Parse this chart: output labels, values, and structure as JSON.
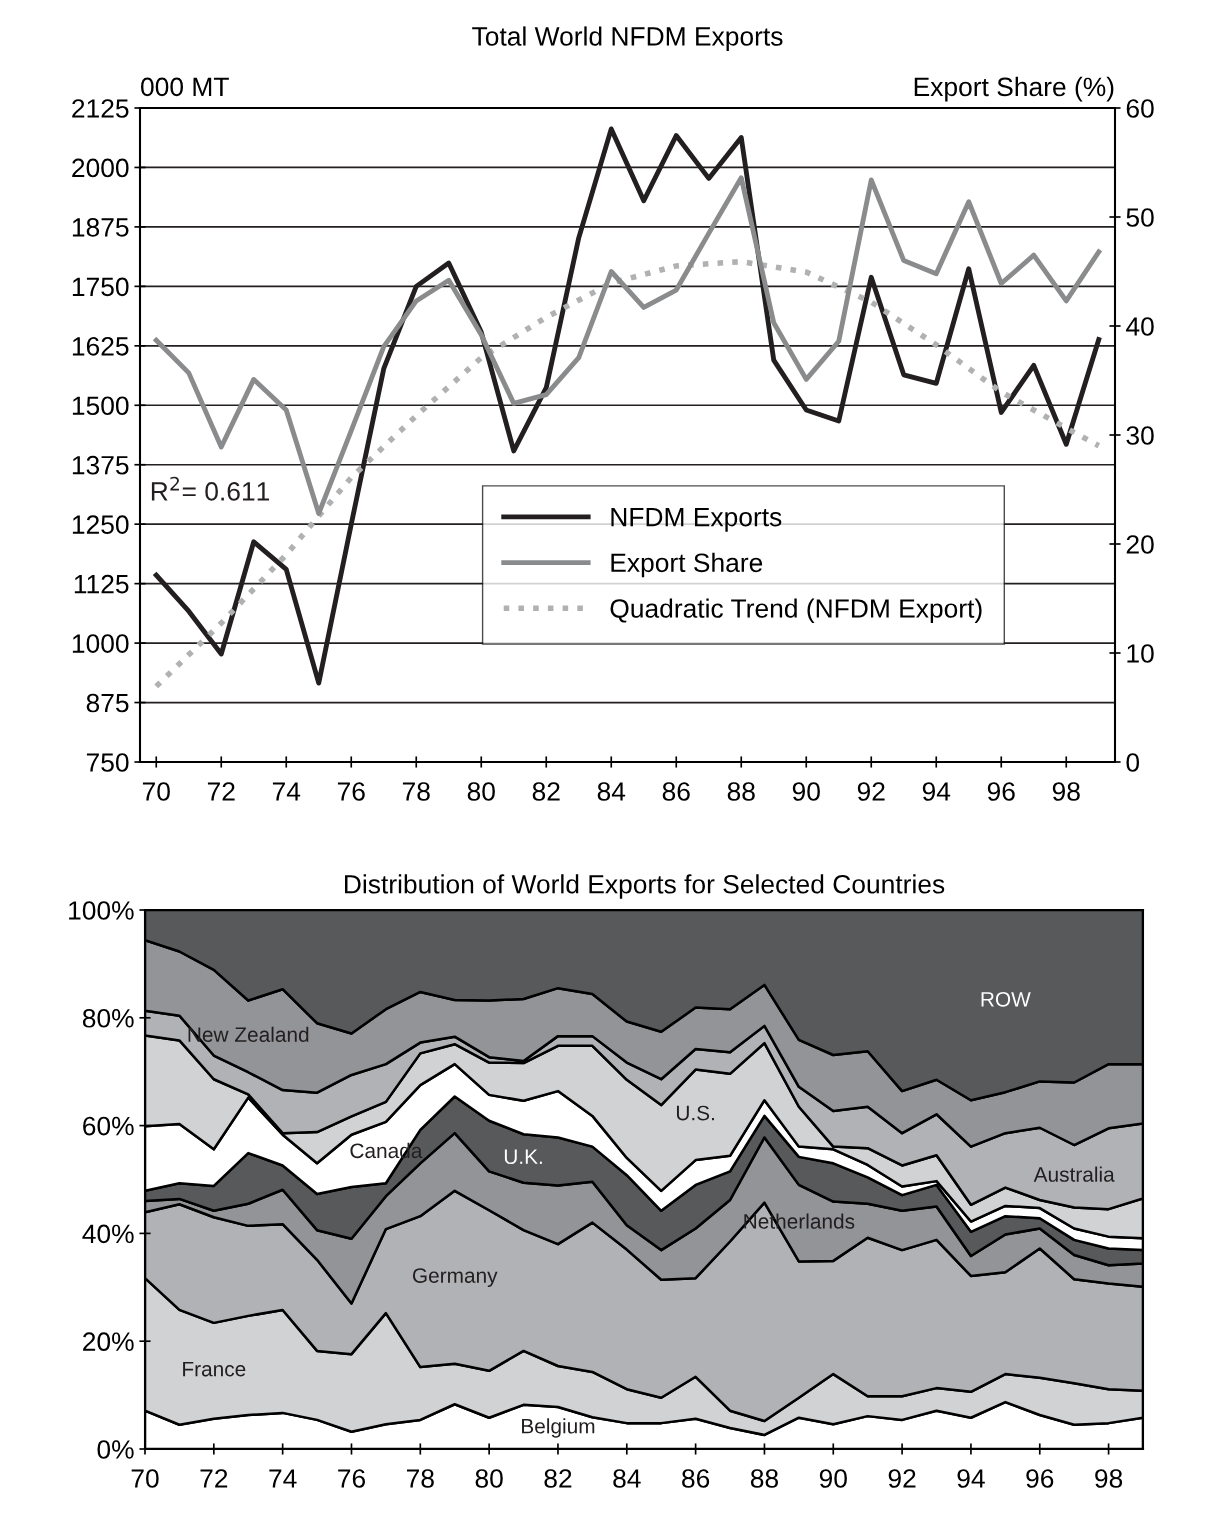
{
  "chart_data": [
    {
      "type": "line",
      "title": "Total World NFDM Exports",
      "ylabel": "000 MT",
      "y2label": "Export Share (%)",
      "x": [
        70,
        71,
        72,
        73,
        74,
        75,
        76,
        77,
        78,
        79,
        80,
        81,
        82,
        83,
        84,
        85,
        86,
        87,
        88,
        89,
        90,
        91,
        92,
        93,
        94,
        95,
        96,
        97,
        98,
        99
      ],
      "xlim": [
        69.5,
        99.5
      ],
      "xticks": [
        70,
        72,
        74,
        76,
        78,
        80,
        82,
        84,
        86,
        88,
        90,
        92,
        94,
        96,
        98
      ],
      "ylim": [
        750,
        2125
      ],
      "yticks": [
        750,
        875,
        1000,
        1125,
        1250,
        1375,
        1500,
        1625,
        1750,
        1875,
        2000,
        2125
      ],
      "y2lim": [
        0,
        60
      ],
      "y2ticks": [
        0,
        10,
        20,
        30,
        40,
        50,
        60
      ],
      "grid": "y",
      "legend": "bottom right",
      "marker": "none",
      "annotations": [
        "R$^{2}$= 0.611"
      ],
      "series": [
        {
          "name": "NFDM Exports",
          "color": "#231f20",
          "line_style": "solid",
          "values": [
            1143,
            1067,
            977,
            1213,
            1155,
            916,
            1250,
            1577,
            1750,
            1799,
            1654,
            1404,
            1537,
            1852,
            2081,
            1930,
            2067,
            1977,
            2063,
            1595,
            1490,
            1467,
            1769,
            1564,
            1546,
            1787,
            1485,
            1584,
            1418,
            1638
          ]
        },
        {
          "name": "Export Share",
          "color": "#8a8b8d",
          "line_style": "solid",
          "axis": "y2",
          "values": [
            38.7,
            35.7,
            28.9,
            35.1,
            32.3,
            22.8,
            30.4,
            38.1,
            42.3,
            44.2,
            39.2,
            32.9,
            33.7,
            37.1,
            45.0,
            41.7,
            43.3,
            48.5,
            53.6,
            40.3,
            35.1,
            38.6,
            53.4,
            46.0,
            44.8,
            51.4,
            43.9,
            46.5,
            42.3,
            46.8
          ]
        },
        {
          "name": "Quadratic Trend (NFDM Export)",
          "color": "#b0b1b3",
          "line_style": "dotted",
          "x": [
            70,
            72,
            74,
            76,
            78,
            80,
            82,
            84,
            86,
            88,
            90,
            92,
            94,
            96,
            98,
            99
          ],
          "values": [
            909,
            1042,
            1186,
            1348,
            1478,
            1600,
            1685,
            1757,
            1793,
            1802,
            1780,
            1717,
            1627,
            1528,
            1452,
            1415
          ]
        }
      ]
    },
    {
      "type": "area",
      "stacked": true,
      "title": "Distribution of World Exports for Selected Countries",
      "x": [
        70,
        71,
        72,
        73,
        74,
        75,
        76,
        77,
        78,
        79,
        80,
        81,
        82,
        83,
        84,
        85,
        86,
        87,
        88,
        89,
        90,
        91,
        92,
        93,
        94,
        95,
        96,
        97,
        98,
        99
      ],
      "xlim": [
        70,
        99
      ],
      "xticks": [
        70,
        72,
        74,
        76,
        78,
        80,
        82,
        84,
        86,
        88,
        90,
        92,
        94,
        96,
        98
      ],
      "ylim": [
        0,
        100
      ],
      "yticks": [
        {
          "value": 0,
          "label": "0%"
        },
        {
          "value": 20,
          "label": "20%"
        },
        {
          "value": 40,
          "label": "40%"
        },
        {
          "value": 60,
          "label": "60%"
        },
        {
          "value": 80,
          "label": "80%"
        },
        {
          "value": 100,
          "label": "100%"
        }
      ],
      "grid": false,
      "series": [
        {
          "name": "Belgium",
          "color": "#ffffff",
          "values": [
            7.1,
            4.5,
            5.6,
            6.3,
            6.7,
            5.4,
            3.2,
            4.6,
            5.4,
            8.3,
            5.8,
            8.2,
            7.8,
            5.9,
            4.8,
            4.8,
            5.6,
            3.9,
            2.6,
            5.8,
            4.6,
            6.1,
            5.4,
            7.1,
            5.8,
            8.7,
            6.3,
            4.5,
            4.8,
            5.8
          ]
        },
        {
          "name": "France",
          "color": "#d1d2d4",
          "values": [
            24.6,
            21.3,
            17.8,
            18.4,
            19.1,
            12.8,
            14.4,
            20.6,
            9.8,
            7.5,
            8.7,
            10.0,
            7.6,
            8.4,
            6.3,
            4.7,
            7.8,
            3.2,
            2.6,
            3.7,
            9.3,
            3.7,
            4.4,
            4.2,
            4.8,
            5.2,
            6.9,
            7.7,
            6.3,
            5.0
          ]
        },
        {
          "name": "Germany",
          "color": "#b1b2b5",
          "values": [
            12.2,
            19.6,
            19.6,
            16.7,
            15.9,
            16.9,
            9.4,
            15.6,
            28.0,
            32.1,
            29.8,
            22.4,
            22.6,
            27.7,
            25.9,
            21.9,
            18.3,
            31.4,
            40.5,
            25.3,
            21.0,
            29.4,
            27.1,
            27.5,
            21.5,
            18.9,
            24.0,
            19.3,
            19.6,
            19.3
          ]
        },
        {
          "name": "Netherlands",
          "color": "#939497",
          "values": [
            2.1,
            1.0,
            1.2,
            4.1,
            6.4,
            5.5,
            12.0,
            6.1,
            9.8,
            10.7,
            7.2,
            8.8,
            10.9,
            7.6,
            4.5,
            5.5,
            9.2,
            7.7,
            12.1,
            14.2,
            11.0,
            6.3,
            7.3,
            6.2,
            3.7,
            7.0,
            3.7,
            4.5,
            3.4,
            4.3
          ]
        },
        {
          "name": "U.K.",
          "color": "#58595b",
          "values": [
            1.9,
            2.9,
            4.6,
            9.4,
            4.5,
            6.7,
            9.6,
            2.4,
            6.2,
            6.8,
            9.4,
            9.0,
            8.9,
            6.5,
            9.3,
            7.3,
            8.1,
            5.3,
            4.0,
            5.2,
            7.1,
            4.9,
            2.9,
            4.0,
            4.5,
            3.4,
            1.9,
            2.8,
            3.1,
            2.5
          ]
        },
        {
          "name": "Canada",
          "color": "#ffffff",
          "values": [
            12.0,
            11.0,
            6.8,
            10.3,
            5.7,
            5.7,
            9.7,
            11.4,
            8.3,
            6.0,
            4.8,
            6.2,
            8.6,
            5.7,
            3.2,
            3.7,
            4.6,
            2.9,
            2.9,
            1.9,
            2.6,
            2.3,
            1.6,
            0.7,
            1.9,
            1.9,
            1.9,
            2.1,
            2.2,
            2.2
          ]
        },
        {
          "name": "U.S.",
          "color": "#d1d2d4",
          "values": [
            16.8,
            15.5,
            13.0,
            0.6,
            0.3,
            5.8,
            3.4,
            3.7,
            5.9,
            3.7,
            6.0,
            7.0,
            8.4,
            13.0,
            14.5,
            15.9,
            16.8,
            15.2,
            10.6,
            7.4,
            0.5,
            3.1,
            3.9,
            4.8,
            3.1,
            3.4,
            1.5,
            3.9,
            5.1,
            7.4
          ]
        },
        {
          "name": "Australia",
          "color": "#b1b2b5",
          "values": [
            4.6,
            4.6,
            4.4,
            4.1,
            8.0,
            7.3,
            7.7,
            7.0,
            2.0,
            1.4,
            1.0,
            0.4,
            1.8,
            1.8,
            3.2,
            4.8,
            3.8,
            4.0,
            3.2,
            3.7,
            6.6,
            7.7,
            6.0,
            7.6,
            10.8,
            10.1,
            13.4,
            11.6,
            15.0,
            13.9
          ]
        },
        {
          "name": "New Zealand",
          "color": "#939497",
          "values": [
            13.1,
            11.9,
            15.9,
            13.3,
            18.7,
            12.9,
            7.7,
            10.2,
            9.4,
            6.8,
            10.5,
            11.5,
            8.9,
            7.8,
            7.6,
            8.8,
            7.7,
            8.0,
            7.6,
            8.7,
            10.4,
            10.3,
            7.8,
            6.4,
            8.6,
            7.6,
            8.6,
            11.6,
            11.9,
            11.0
          ]
        },
        {
          "name": "ROW",
          "color": "#58595b",
          "values": [
            5.6,
            7.7,
            11.1,
            16.8,
            14.7,
            21.0,
            22.9,
            18.4,
            15.2,
            16.7,
            16.8,
            16.5,
            14.5,
            15.6,
            20.7,
            22.6,
            18.1,
            18.4,
            13.9,
            24.1,
            26.9,
            26.2,
            33.6,
            31.5,
            35.3,
            33.8,
            31.8,
            32.0,
            28.6,
            28.6
          ]
        }
      ]
    }
  ]
}
